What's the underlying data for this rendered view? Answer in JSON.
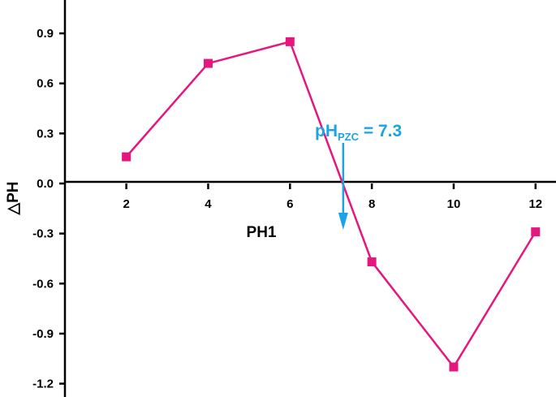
{
  "chart_data": {
    "type": "line",
    "xlabel": "PH1",
    "ylabel": "△PH",
    "x": [
      2,
      4,
      6,
      8,
      10,
      12
    ],
    "series": [
      {
        "values": [
          0.16,
          0.72,
          0.85,
          -0.47,
          -1.1,
          -0.29
        ]
      }
    ],
    "xlim": [
      0.5,
      12.5
    ],
    "ylim": [
      -1.28,
      1.1
    ],
    "xticks": [
      "2",
      "4",
      "6",
      "8",
      "10",
      "12"
    ],
    "yticks": [
      "0.9",
      "0.6",
      "0.3",
      "0.0",
      "-0.3",
      "-0.6",
      "-0.9",
      "-1.2"
    ],
    "ytick_values": [
      0.9,
      0.6,
      0.3,
      0.0,
      -0.3,
      -0.6,
      -0.9,
      -1.2
    ],
    "grid": false,
    "line_color": "#e5177e",
    "annotation": {
      "text_main": "pH",
      "text_sub": "PZC",
      "text_rest": " = 7.3",
      "x": 7.3,
      "y": 0.0,
      "color": "#1aa3e8"
    }
  }
}
